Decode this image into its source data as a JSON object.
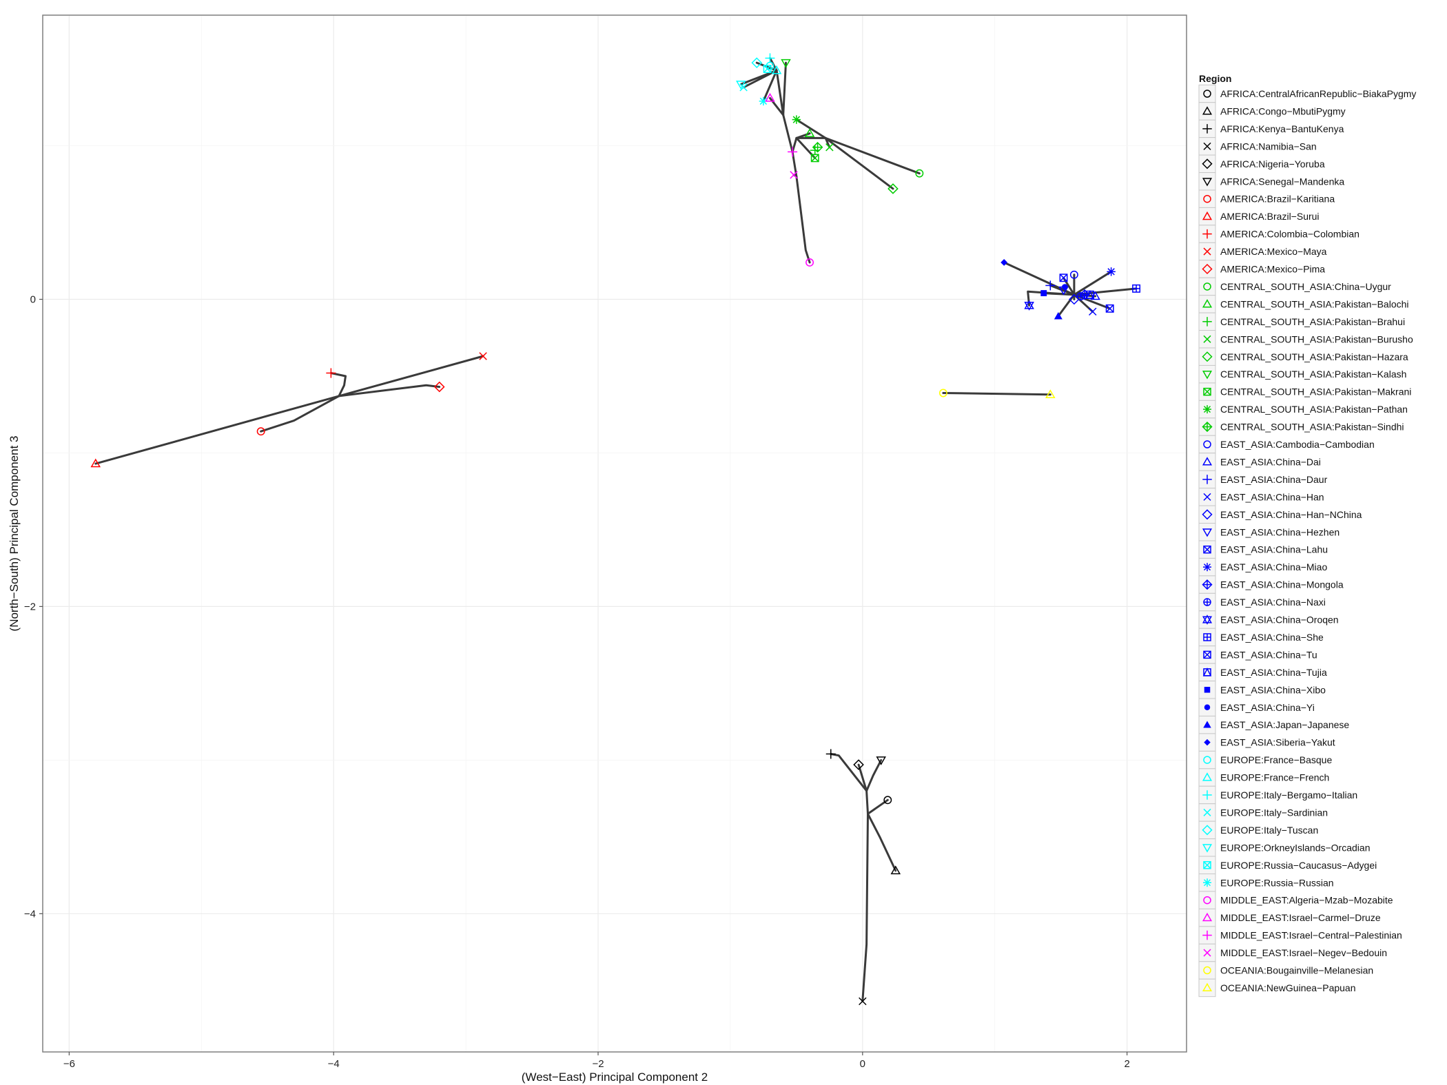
{
  "chart_data": {
    "type": "scatter",
    "title": "",
    "xlabel": "(West−East) Principal Component 2",
    "ylabel": "(North−South) Principal Component 3",
    "xlim": [
      -6.2,
      2.45
    ],
    "ylim": [
      -4.9,
      1.85
    ],
    "x_ticks": [
      -6,
      -4,
      -2,
      0,
      2
    ],
    "y_ticks": [
      0,
      -2,
      -4
    ],
    "x_tick_labels": [
      "−6",
      "−4",
      "−2",
      "0",
      "2"
    ],
    "y_tick_labels": [
      "0",
      "−2",
      "−4"
    ],
    "grid": true,
    "legend_position": "right",
    "legend_title": "Region",
    "series": [
      {
        "name": "AFRICA:CentralAfricanRepublic−BiakaPygmy",
        "color": "#000000",
        "shape": "circle",
        "x": 0.19,
        "y": -3.26
      },
      {
        "name": "AFRICA:Congo−MbutiPygmy",
        "color": "#000000",
        "shape": "triangle",
        "x": 0.25,
        "y": -3.72
      },
      {
        "name": "AFRICA:Kenya−BantuKenya",
        "color": "#000000",
        "shape": "plus",
        "x": -0.24,
        "y": -2.96
      },
      {
        "name": "AFRICA:Namibia−San",
        "color": "#000000",
        "shape": "cross",
        "x": 0.0,
        "y": -4.57
      },
      {
        "name": "AFRICA:Nigeria−Yoruba",
        "color": "#000000",
        "shape": "diamond",
        "x": -0.03,
        "y": -3.03
      },
      {
        "name": "AFRICA:Senegal−Mandenka",
        "color": "#000000",
        "shape": "triangle-down",
        "x": 0.14,
        "y": -3.0
      },
      {
        "name": "AMERICA:Brazil−Karitiana",
        "color": "#ff0000",
        "shape": "circle",
        "x": -4.55,
        "y": -0.86
      },
      {
        "name": "AMERICA:Brazil−Surui",
        "color": "#ff0000",
        "shape": "triangle",
        "x": -5.8,
        "y": -1.07
      },
      {
        "name": "AMERICA:Colombia−Colombian",
        "color": "#ff0000",
        "shape": "plus",
        "x": -4.02,
        "y": -0.48
      },
      {
        "name": "AMERICA:Mexico−Maya",
        "color": "#ff0000",
        "shape": "cross",
        "x": -2.87,
        "y": -0.37
      },
      {
        "name": "AMERICA:Mexico−Pima",
        "color": "#ff0000",
        "shape": "diamond",
        "x": -3.2,
        "y": -0.57
      },
      {
        "name": "CENTRAL_SOUTH_ASIA:China−Uygur",
        "color": "#00cc00",
        "shape": "circle",
        "x": 0.43,
        "y": 0.82
      },
      {
        "name": "CENTRAL_SOUTH_ASIA:Pakistan−Balochi",
        "color": "#00cc00",
        "shape": "triangle",
        "x": -0.4,
        "y": 1.08
      },
      {
        "name": "CENTRAL_SOUTH_ASIA:Pakistan−Brahui",
        "color": "#00cc00",
        "shape": "plus",
        "x": -0.36,
        "y": 0.97
      },
      {
        "name": "CENTRAL_SOUTH_ASIA:Pakistan−Burusho",
        "color": "#00cc00",
        "shape": "cross",
        "x": -0.25,
        "y": 0.99
      },
      {
        "name": "CENTRAL_SOUTH_ASIA:Pakistan−Hazara",
        "color": "#00cc00",
        "shape": "diamond",
        "x": 0.23,
        "y": 0.72
      },
      {
        "name": "CENTRAL_SOUTH_ASIA:Pakistan−Kalash",
        "color": "#00cc00",
        "shape": "triangle-down",
        "x": -0.58,
        "y": 1.54
      },
      {
        "name": "CENTRAL_SOUTH_ASIA:Pakistan−Makrani",
        "color": "#00cc00",
        "shape": "square-x",
        "x": -0.36,
        "y": 0.92
      },
      {
        "name": "CENTRAL_SOUTH_ASIA:Pakistan−Pathan",
        "color": "#00cc00",
        "shape": "asterisk",
        "x": -0.5,
        "y": 1.17
      },
      {
        "name": "CENTRAL_SOUTH_ASIA:Pakistan−Sindhi",
        "color": "#00cc00",
        "shape": "diamond-plus",
        "x": -0.34,
        "y": 0.99
      },
      {
        "name": "EAST_ASIA:Cambodia−Cambodian",
        "color": "#0000ff",
        "shape": "circle",
        "x": 1.6,
        "y": 0.16
      },
      {
        "name": "EAST_ASIA:China−Dai",
        "color": "#0000ff",
        "shape": "triangle",
        "x": 1.76,
        "y": 0.02
      },
      {
        "name": "EAST_ASIA:China−Daur",
        "color": "#0000ff",
        "shape": "plus",
        "x": 1.42,
        "y": 0.09
      },
      {
        "name": "EAST_ASIA:China−Han",
        "color": "#0000ff",
        "shape": "cross",
        "x": 1.74,
        "y": -0.08
      },
      {
        "name": "EAST_ASIA:China−Han−NChina",
        "color": "#0000ff",
        "shape": "diamond",
        "x": 1.6,
        "y": 0.0
      },
      {
        "name": "EAST_ASIA:China−Hezhen",
        "color": "#0000ff",
        "shape": "triangle-down",
        "x": 1.52,
        "y": 0.06
      },
      {
        "name": "EAST_ASIA:China−Lahu",
        "color": "#0000ff",
        "shape": "square-x",
        "x": 1.87,
        "y": -0.06
      },
      {
        "name": "EAST_ASIA:China−Miao",
        "color": "#0000ff",
        "shape": "asterisk",
        "x": 1.88,
        "y": 0.18
      },
      {
        "name": "EAST_ASIA:China−Mongola",
        "color": "#0000ff",
        "shape": "diamond-plus",
        "x": 1.68,
        "y": 0.03
      },
      {
        "name": "EAST_ASIA:China−Naxi",
        "color": "#0000ff",
        "shape": "circle-plus",
        "x": 1.65,
        "y": 0.02
      },
      {
        "name": "EAST_ASIA:China−Oroqen",
        "color": "#0000ff",
        "shape": "star-of-david",
        "x": 1.26,
        "y": -0.04
      },
      {
        "name": "EAST_ASIA:China−She",
        "color": "#0000ff",
        "shape": "square-plus",
        "x": 2.07,
        "y": 0.07
      },
      {
        "name": "EAST_ASIA:China−Tu",
        "color": "#0000ff",
        "shape": "square-x",
        "x": 1.52,
        "y": 0.14
      },
      {
        "name": "EAST_ASIA:China−Tujia",
        "color": "#0000ff",
        "shape": "square-triangle",
        "x": 1.72,
        "y": 0.03
      },
      {
        "name": "EAST_ASIA:China−Xibo",
        "color": "#0000ff",
        "shape": "filled-square",
        "x": 1.37,
        "y": 0.04
      },
      {
        "name": "EAST_ASIA:China−Yi",
        "color": "#0000ff",
        "shape": "filled-circle",
        "x": 1.53,
        "y": 0.08
      },
      {
        "name": "EAST_ASIA:Japan−Japanese",
        "color": "#0000ff",
        "shape": "filled-triangle",
        "x": 1.48,
        "y": -0.11
      },
      {
        "name": "EAST_ASIA:Siberia−Yakut",
        "color": "#0000ff",
        "shape": "filled-diamond",
        "x": 1.07,
        "y": 0.24
      },
      {
        "name": "EUROPE:France−Basque",
        "color": "#00ffff",
        "shape": "circle",
        "x": -0.7,
        "y": 1.52
      },
      {
        "name": "EUROPE:France−French",
        "color": "#00ffff",
        "shape": "triangle",
        "x": -0.65,
        "y": 1.49
      },
      {
        "name": "EUROPE:Italy−Bergamo−Italian",
        "color": "#00ffff",
        "shape": "plus",
        "x": -0.7,
        "y": 1.57
      },
      {
        "name": "EUROPE:Italy−Sardinian",
        "color": "#00ffff",
        "shape": "cross",
        "x": -0.9,
        "y": 1.38
      },
      {
        "name": "EUROPE:Italy−Tuscan",
        "color": "#00ffff",
        "shape": "diamond",
        "x": -0.8,
        "y": 1.54
      },
      {
        "name": "EUROPE:OrkneyIslands−Orcadian",
        "color": "#00ffff",
        "shape": "triangle-down",
        "x": -0.92,
        "y": 1.4
      },
      {
        "name": "EUROPE:Russia−Caucasus−Adygei",
        "color": "#00ffff",
        "shape": "square-x",
        "x": -0.72,
        "y": 1.5
      },
      {
        "name": "EUROPE:Russia−Russian",
        "color": "#00ffff",
        "shape": "asterisk",
        "x": -0.75,
        "y": 1.29
      },
      {
        "name": "MIDDLE_EAST:Algeria−Mzab−Mozabite",
        "color": "#ff00ff",
        "shape": "circle",
        "x": -0.4,
        "y": 0.24
      },
      {
        "name": "MIDDLE_EAST:Israel−Carmel−Druze",
        "color": "#ff00ff",
        "shape": "triangle",
        "x": -0.7,
        "y": 1.31
      },
      {
        "name": "MIDDLE_EAST:Israel−Central−Palestinian",
        "color": "#ff00ff",
        "shape": "plus",
        "x": -0.53,
        "y": 0.96
      },
      {
        "name": "MIDDLE_EAST:Israel−Negev−Bedouin",
        "color": "#ff00ff",
        "shape": "cross",
        "x": -0.52,
        "y": 0.81
      },
      {
        "name": "OCEANIA:Bougainville−Melanesian",
        "color": "#ffff00",
        "shape": "circle",
        "x": 0.61,
        "y": -0.61
      },
      {
        "name": "OCEANIA:NewGuinea−Papuan",
        "color": "#ffff00",
        "shape": "triangle",
        "x": 1.42,
        "y": -0.62
      }
    ],
    "tree_edges": [
      [
        [
          -5.8,
          -1.07
        ],
        [
          -3.96,
          -0.63
        ]
      ],
      [
        [
          -3.96,
          -0.63
        ],
        [
          -2.87,
          -0.37
        ]
      ],
      [
        [
          -4.55,
          -0.86
        ],
        [
          -4.3,
          -0.79
        ],
        [
          -3.96,
          -0.63
        ]
      ],
      [
        [
          -3.96,
          -0.63
        ],
        [
          -3.3,
          -0.56
        ],
        [
          -3.2,
          -0.57
        ]
      ],
      [
        [
          -3.96,
          -0.63
        ],
        [
          -3.92,
          -0.56
        ],
        [
          -3.91,
          -0.5
        ],
        [
          -4.02,
          -0.48
        ]
      ],
      [
        [
          0.61,
          -0.61
        ],
        [
          1.42,
          -0.62
        ]
      ],
      [
        [
          0.0,
          -4.57
        ],
        [
          0.03,
          -4.2
        ],
        [
          0.04,
          -3.35
        ]
      ],
      [
        [
          0.04,
          -3.35
        ],
        [
          0.19,
          -3.26
        ]
      ],
      [
        [
          0.04,
          -3.35
        ],
        [
          0.13,
          -3.5
        ],
        [
          0.25,
          -3.72
        ]
      ],
      [
        [
          0.04,
          -3.35
        ],
        [
          0.03,
          -3.2
        ],
        [
          0.08,
          -3.1
        ],
        [
          0.14,
          -3.0
        ]
      ],
      [
        [
          0.03,
          -3.2
        ],
        [
          -0.03,
          -3.03
        ]
      ],
      [
        [
          0.03,
          -3.2
        ],
        [
          -0.18,
          -2.97
        ],
        [
          -0.24,
          -2.96
        ]
      ],
      [
        [
          1.6,
          0.03
        ],
        [
          1.07,
          0.24
        ]
      ],
      [
        [
          1.6,
          0.03
        ],
        [
          1.25,
          0.05
        ],
        [
          1.26,
          -0.04
        ]
      ],
      [
        [
          1.6,
          0.03
        ],
        [
          1.48,
          -0.11
        ]
      ],
      [
        [
          1.6,
          0.03
        ],
        [
          2.07,
          0.07
        ]
      ],
      [
        [
          1.6,
          0.03
        ],
        [
          1.88,
          0.18
        ]
      ],
      [
        [
          1.6,
          0.03
        ],
        [
          1.87,
          -0.06
        ]
      ],
      [
        [
          1.6,
          0.03
        ],
        [
          1.74,
          -0.08
        ]
      ],
      [
        [
          1.6,
          0.03
        ],
        [
          1.52,
          0.14
        ]
      ],
      [
        [
          1.6,
          0.03
        ],
        [
          1.6,
          0.16
        ]
      ],
      [
        [
          1.6,
          0.03
        ],
        [
          1.42,
          0.09
        ]
      ],
      [
        [
          1.6,
          0.03
        ],
        [
          1.37,
          0.04
        ]
      ],
      [
        [
          1.6,
          0.03
        ],
        [
          1.6,
          0.0
        ]
      ],
      [
        [
          1.6,
          0.03
        ],
        [
          1.76,
          0.02
        ]
      ],
      [
        [
          -0.4,
          0.24
        ],
        [
          -0.43,
          0.32
        ],
        [
          -0.5,
          0.8
        ],
        [
          -0.52,
          0.81
        ]
      ],
      [
        [
          -0.5,
          0.8
        ],
        [
          -0.53,
          0.96
        ]
      ],
      [
        [
          -0.53,
          0.96
        ],
        [
          -0.6,
          1.2
        ],
        [
          -0.7,
          1.31
        ]
      ],
      [
        [
          -0.6,
          1.2
        ],
        [
          -0.65,
          1.49
        ]
      ],
      [
        [
          -0.65,
          1.49
        ],
        [
          -0.7,
          1.57
        ]
      ],
      [
        [
          -0.65,
          1.49
        ],
        [
          -0.8,
          1.54
        ]
      ],
      [
        [
          -0.65,
          1.49
        ],
        [
          -0.92,
          1.4
        ]
      ],
      [
        [
          -0.65,
          1.49
        ],
        [
          -0.9,
          1.38
        ]
      ],
      [
        [
          -0.65,
          1.49
        ],
        [
          -0.75,
          1.29
        ]
      ],
      [
        [
          -0.53,
          0.96
        ],
        [
          -0.5,
          1.05
        ],
        [
          -0.28,
          1.05
        ]
      ],
      [
        [
          -0.28,
          1.05
        ],
        [
          0.43,
          0.82
        ]
      ],
      [
        [
          -0.28,
          1.05
        ],
        [
          0.23,
          0.72
        ]
      ],
      [
        [
          -0.28,
          1.05
        ],
        [
          -0.5,
          1.17
        ]
      ],
      [
        [
          -0.28,
          1.05
        ],
        [
          -0.25,
          0.99
        ]
      ],
      [
        [
          -0.5,
          1.05
        ],
        [
          -0.36,
          0.92
        ]
      ],
      [
        [
          -0.5,
          1.05
        ],
        [
          -0.4,
          1.08
        ]
      ],
      [
        [
          -0.6,
          1.2
        ],
        [
          -0.58,
          1.54
        ]
      ]
    ]
  }
}
